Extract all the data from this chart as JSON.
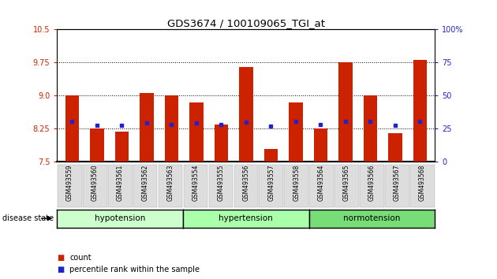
{
  "title": "GDS3674 / 100109065_TGI_at",
  "samples": [
    "GSM493559",
    "GSM493560",
    "GSM493561",
    "GSM493562",
    "GSM493563",
    "GSM493554",
    "GSM493555",
    "GSM493556",
    "GSM493557",
    "GSM493558",
    "GSM493564",
    "GSM493565",
    "GSM493566",
    "GSM493567",
    "GSM493568"
  ],
  "count_values": [
    9.0,
    8.25,
    8.18,
    9.05,
    9.0,
    8.85,
    8.35,
    9.65,
    7.8,
    8.85,
    8.25,
    9.75,
    9.0,
    8.15,
    9.8
  ],
  "percentile_values": [
    8.42,
    8.32,
    8.32,
    8.38,
    8.35,
    8.38,
    8.35,
    8.4,
    8.3,
    8.42,
    8.35,
    8.42,
    8.42,
    8.32,
    8.42
  ],
  "ymin": 7.5,
  "ymax": 10.5,
  "yticks_left": [
    7.5,
    8.25,
    9.0,
    9.75,
    10.5
  ],
  "yticks_right_labels": [
    "0",
    "25",
    "50",
    "75",
    "100%"
  ],
  "yticks_right_pct": [
    0,
    25,
    50,
    75,
    100
  ],
  "bar_color": "#cc2200",
  "dot_color": "#2222cc",
  "bar_width": 0.55,
  "groups": [
    {
      "label": "hypotension",
      "start": 0,
      "end": 5,
      "color": "#ccffcc"
    },
    {
      "label": "hypertension",
      "start": 5,
      "end": 10,
      "color": "#aaffaa"
    },
    {
      "label": "normotension",
      "start": 10,
      "end": 15,
      "color": "#77dd77"
    }
  ],
  "disease_state_label": "disease state",
  "legend_count_label": "count",
  "legend_percentile_label": "percentile rank within the sample",
  "grid_yticks": [
    8.25,
    9.0,
    9.75
  ],
  "left_tick_color": "#cc2200",
  "right_tick_color": "#2222cc"
}
